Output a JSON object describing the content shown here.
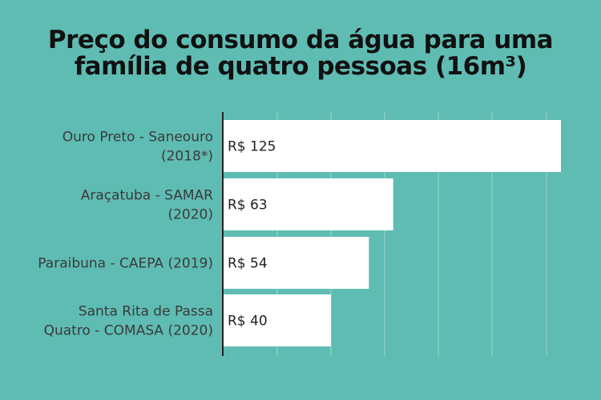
{
  "title_lines": [
    "Preço do consumo da água para uma",
    "família de quatro pessoas (16m³)"
  ],
  "colors": {
    "background": "#5fbcb3",
    "bar": "#ffffff",
    "gridline": "#8fd3cc",
    "axis": "#222222"
  },
  "chart_data": {
    "type": "bar",
    "orientation": "horizontal",
    "title": "Preço do consumo da água para uma família de quatro pessoas (16m³)",
    "categories": [
      [
        "Ouro Preto - Saneouro",
        "(2018*)"
      ],
      [
        "Araçatuba - SAMAR",
        "(2020)"
      ],
      [
        "Paraibuna - CAEPA (2019)"
      ],
      [
        "Santa Rita de Passa",
        "Quatro - COMASA (2020)"
      ]
    ],
    "values": [
      125,
      63,
      54,
      40
    ],
    "value_labels": [
      "R$ 125",
      "R$ 63",
      "R$ 54",
      "R$ 40"
    ],
    "xlim": [
      0,
      125
    ],
    "grid": true,
    "legend": "none"
  }
}
